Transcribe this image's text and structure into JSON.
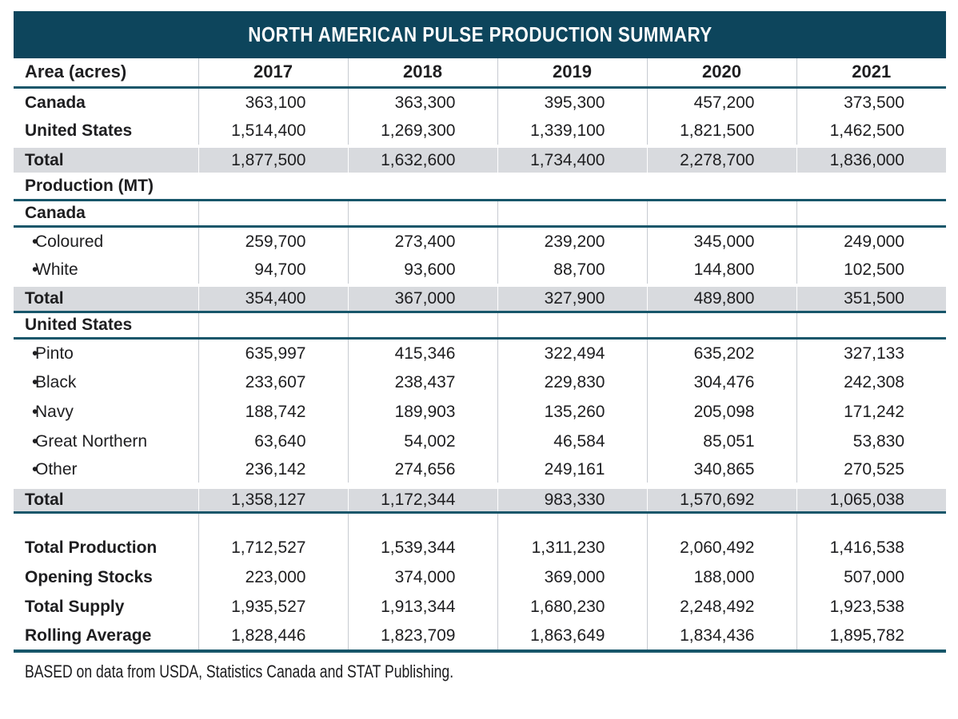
{
  "title": "NORTH AMERICAN PULSE PRODUCTION SUMMARY",
  "footer": "BASED on data from USDA, Statistics Canada and STAT Publishing.",
  "bullet": "•",
  "colors": {
    "header_bar": "#0d455c",
    "section_rule": "#17566a",
    "total_row_shade": "#d8dade",
    "column_grid": "#c7cbd1",
    "text": "#1e1e20"
  },
  "table": {
    "columns": [
      "Area (acres)",
      "2017",
      "2018",
      "2019",
      "2020",
      "2021"
    ],
    "rows": [
      {
        "kind": "data",
        "bold": true,
        "label": "Canada",
        "values": [
          "363,100",
          "363,300",
          "395,300",
          "457,200",
          "373,500"
        ]
      },
      {
        "kind": "data",
        "bold": true,
        "label": "United States",
        "values": [
          "1,514,400",
          "1,269,300",
          "1,339,100",
          "1,821,500",
          "1,462,500"
        ]
      },
      {
        "kind": "total",
        "label": "Total",
        "values": [
          "1,877,500",
          "1,632,600",
          "1,734,400",
          "2,278,700",
          "1,836,000"
        ]
      },
      {
        "kind": "full",
        "rule_below": true,
        "label": "Production (MT)"
      },
      {
        "kind": "section",
        "rule_below": true,
        "label": "Canada"
      },
      {
        "kind": "data",
        "bullet": true,
        "label": "Coloured",
        "values": [
          "259,700",
          "273,400",
          "239,200",
          "345,000",
          "249,000"
        ]
      },
      {
        "kind": "data",
        "bullet": true,
        "label": "White",
        "values": [
          "94,700",
          "93,600",
          "88,700",
          "144,800",
          "102,500"
        ]
      },
      {
        "kind": "total",
        "rule_below": true,
        "label": "Total",
        "values": [
          "354,400",
          "367,000",
          "327,900",
          "489,800",
          "351,500"
        ]
      },
      {
        "kind": "section",
        "rule_below": true,
        "label": "United States"
      },
      {
        "kind": "data",
        "bullet": true,
        "label": "Pinto",
        "values": [
          "635,997",
          "415,346",
          "322,494",
          "635,202",
          "327,133"
        ]
      },
      {
        "kind": "data",
        "bullet": true,
        "label": "Black",
        "values": [
          "233,607",
          "238,437",
          "229,830",
          "304,476",
          "242,308"
        ]
      },
      {
        "kind": "data",
        "bullet": true,
        "label": "Navy",
        "values": [
          "188,742",
          "189,903",
          "135,260",
          "205,098",
          "171,242"
        ]
      },
      {
        "kind": "data",
        "bullet": true,
        "label": "Great Northern",
        "values": [
          "63,640",
          "54,002",
          "46,584",
          "85,051",
          "53,830"
        ]
      },
      {
        "kind": "data",
        "bullet": true,
        "label": "Other",
        "values": [
          "236,142",
          "274,656",
          "249,161",
          "340,865",
          "270,525"
        ]
      },
      {
        "kind": "total",
        "gap_above": true,
        "rule_below": true,
        "label": "Total",
        "values": [
          "1,358,127",
          "1,172,344",
          "983,330",
          "1,570,692",
          "1,065,038"
        ]
      },
      {
        "kind": "spacer"
      },
      {
        "kind": "data",
        "bold": true,
        "label": "Total Production",
        "values": [
          "1,712,527",
          "1,539,344",
          "1,311,230",
          "2,060,492",
          "1,416,538"
        ]
      },
      {
        "kind": "data",
        "bold": true,
        "label": "Opening Stocks",
        "values": [
          "223,000",
          "374,000",
          "369,000",
          "188,000",
          "507,000"
        ]
      },
      {
        "kind": "data",
        "bold": true,
        "label": "Total Supply",
        "values": [
          "1,935,527",
          "1,913,344",
          "1,680,230",
          "2,248,492",
          "1,923,538"
        ]
      },
      {
        "kind": "data",
        "bold": true,
        "label": "Rolling Average",
        "values": [
          "1,828,446",
          "1,823,709",
          "1,863,649",
          "1,834,436",
          "1,895,782"
        ]
      }
    ]
  }
}
